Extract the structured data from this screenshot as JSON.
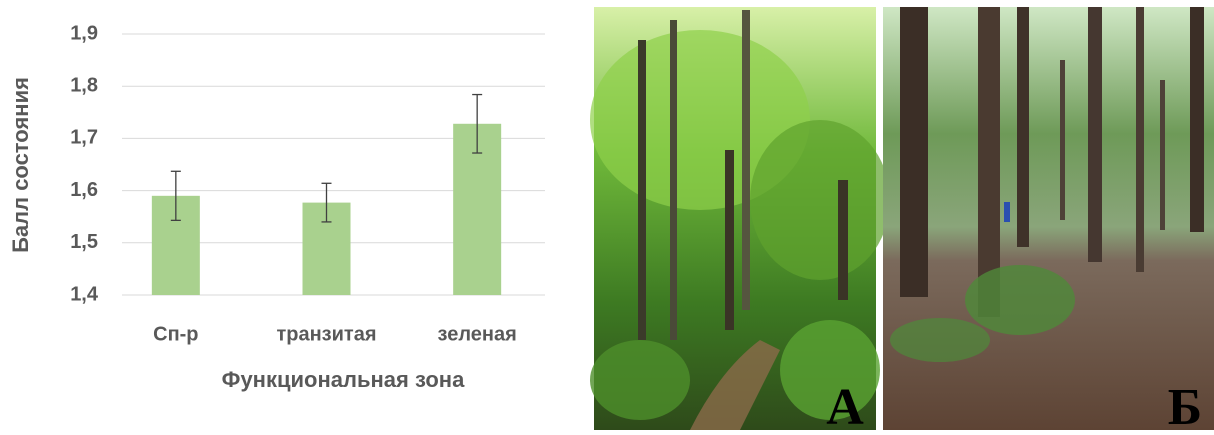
{
  "chart_data": {
    "type": "bar",
    "y_label": "Балл состояния",
    "x_label": "Функциональная зона",
    "categories": [
      "Сп-р",
      "транзитая",
      "зеленая"
    ],
    "values": [
      1.59,
      1.577,
      1.728
    ],
    "errors": [
      0.047,
      0.037,
      0.056
    ],
    "color": "#a9d18e",
    "ylim": [
      1.4,
      1.9
    ],
    "yticks": [
      {
        "value": 1.4,
        "label": "1,4"
      },
      {
        "value": 1.5,
        "label": "1,5"
      },
      {
        "value": 1.6,
        "label": "1,6"
      },
      {
        "value": 1.7,
        "label": "1,7"
      },
      {
        "value": 1.8,
        "label": "1,8"
      },
      {
        "value": 1.9,
        "label": "1,9"
      }
    ],
    "grid": true
  },
  "photos": [
    {
      "label": "А"
    },
    {
      "label": "Б"
    }
  ]
}
